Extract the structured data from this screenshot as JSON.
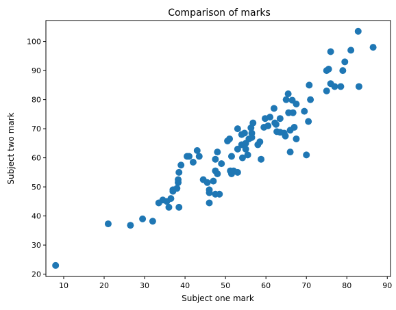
{
  "chart_data": {
    "type": "scatter",
    "title": "Comparison of marks",
    "xlabel": "Subject one mark",
    "ylabel": "Subject two mark",
    "xlim": [
      5.6,
      90.8
    ],
    "ylim": [
      19.2,
      107.2
    ],
    "xticks": [
      10,
      20,
      30,
      40,
      50,
      60,
      70,
      80,
      90
    ],
    "yticks": [
      20,
      30,
      40,
      50,
      60,
      70,
      80,
      90,
      100
    ],
    "grid": false,
    "marker_color": "#1f77b4",
    "points": [
      [
        8,
        23
      ],
      [
        21,
        37.3
      ],
      [
        26.5,
        36.8
      ],
      [
        29.5,
        39
      ],
      [
        32,
        38.2
      ],
      [
        33.5,
        44.5
      ],
      [
        34.5,
        45.5
      ],
      [
        35.5,
        45
      ],
      [
        36,
        43
      ],
      [
        36.5,
        46
      ],
      [
        37,
        49
      ],
      [
        37,
        48.5
      ],
      [
        38,
        49.5
      ],
      [
        38.3,
        51.5
      ],
      [
        38.3,
        52.5
      ],
      [
        38.5,
        43
      ],
      [
        38.5,
        55
      ],
      [
        39,
        57.5
      ],
      [
        40.5,
        60.5
      ],
      [
        41,
        60.5
      ],
      [
        42,
        58.5
      ],
      [
        43,
        62.5
      ],
      [
        43.5,
        60.5
      ],
      [
        44.5,
        52.5
      ],
      [
        45.5,
        51.5
      ],
      [
        46,
        49
      ],
      [
        46,
        48
      ],
      [
        46,
        44.5
      ],
      [
        47,
        52
      ],
      [
        47.5,
        55.5
      ],
      [
        47.5,
        59.5
      ],
      [
        47.5,
        47.5
      ],
      [
        48,
        62
      ],
      [
        48,
        54.5
      ],
      [
        48.5,
        47.5
      ],
      [
        49,
        58
      ],
      [
        50.5,
        65.8
      ],
      [
        51,
        66.5
      ],
      [
        51.2,
        55.5
      ],
      [
        51.5,
        54.5
      ],
      [
        51.5,
        60.5
      ],
      [
        52,
        55.5
      ],
      [
        53,
        55
      ],
      [
        53,
        70
      ],
      [
        53,
        63
      ],
      [
        54,
        64.5
      ],
      [
        54,
        68
      ],
      [
        54.2,
        60
      ],
      [
        54.7,
        68.5
      ],
      [
        55,
        65
      ],
      [
        55,
        63
      ],
      [
        55.5,
        61
      ],
      [
        55.8,
        66.5
      ],
      [
        56.3,
        70.3
      ],
      [
        56.5,
        68.5
      ],
      [
        56.5,
        67
      ],
      [
        56.8,
        72
      ],
      [
        58,
        64.5
      ],
      [
        58.5,
        65.5
      ],
      [
        58.8,
        59.5
      ],
      [
        59.5,
        70.5
      ],
      [
        59.8,
        73.5
      ],
      [
        60.5,
        71
      ],
      [
        61,
        74
      ],
      [
        62,
        77
      ],
      [
        62.2,
        72
      ],
      [
        62.5,
        71.5
      ],
      [
        62.7,
        69
      ],
      [
        63.5,
        68.8
      ],
      [
        63.5,
        73.5
      ],
      [
        64.5,
        68.5
      ],
      [
        64.8,
        67.5
      ],
      [
        65,
        80
      ],
      [
        65.5,
        82
      ],
      [
        65.6,
        75.5
      ],
      [
        66,
        69.5
      ],
      [
        66,
        62
      ],
      [
        66.5,
        79.8
      ],
      [
        66.7,
        75.5
      ],
      [
        67,
        70.5
      ],
      [
        67.5,
        66.5
      ],
      [
        67.5,
        78.5
      ],
      [
        69.5,
        76
      ],
      [
        70,
        61
      ],
      [
        70.5,
        72.5
      ],
      [
        70.7,
        85
      ],
      [
        71,
        80
      ],
      [
        75,
        90
      ],
      [
        75,
        83
      ],
      [
        75.5,
        90.5
      ],
      [
        76,
        96.5
      ],
      [
        76,
        85.5
      ],
      [
        77,
        84.5
      ],
      [
        78.5,
        84.5
      ],
      [
        79,
        90
      ],
      [
        79.5,
        93
      ],
      [
        81,
        97
      ],
      [
        82.8,
        103.5
      ],
      [
        83,
        84.5
      ],
      [
        86.5,
        98
      ]
    ]
  }
}
